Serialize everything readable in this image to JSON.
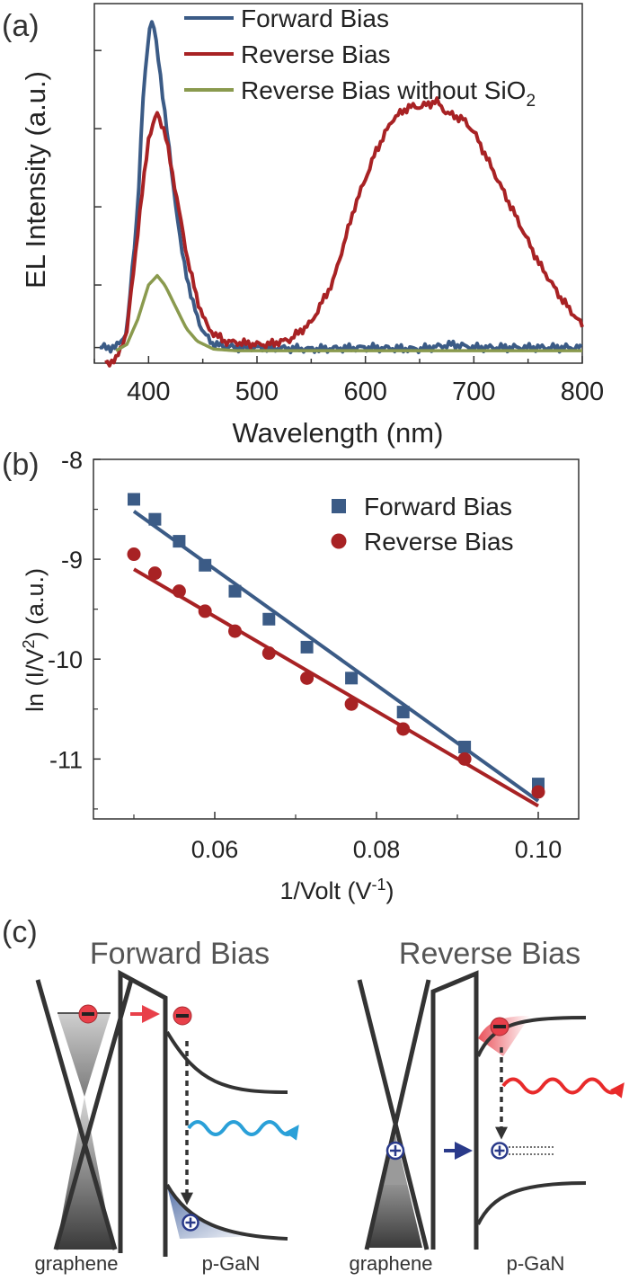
{
  "panels": {
    "a": "(a)",
    "b": "(b)",
    "c": "(c)"
  },
  "colors": {
    "forward": "#3b5b86",
    "reverse": "#a82224",
    "no_sio2": "#8a9a4e",
    "axis": "#333333",
    "electron": "#e8404a",
    "hole_arrow": "#2a3a8a",
    "blue_wave": "#2aa0d8",
    "red_wave": "#e82a2a"
  },
  "chart_data": [
    {
      "id": "a",
      "type": "line",
      "xlabel": "Wavelength (nm)",
      "ylabel": "EL Intensity (a.u.)",
      "xlim": [
        350,
        800
      ],
      "ylim": [
        0,
        1.15
      ],
      "x_ticks": [
        400,
        500,
        600,
        700,
        800
      ],
      "y_ticks": "unlabeled",
      "legend": {
        "placement": "top-right"
      },
      "series": [
        {
          "name": "Forward Bias",
          "color": "#3b5b86",
          "points": [
            [
              355,
              0.05
            ],
            [
              370,
              0.05
            ],
            [
              380,
              0.1
            ],
            [
              390,
              0.5
            ],
            [
              395,
              0.85
            ],
            [
              400,
              1.05
            ],
            [
              402,
              1.1
            ],
            [
              405,
              1.07
            ],
            [
              410,
              0.95
            ],
            [
              420,
              0.65
            ],
            [
              430,
              0.37
            ],
            [
              440,
              0.2
            ],
            [
              450,
              0.1
            ],
            [
              460,
              0.06
            ],
            [
              480,
              0.05
            ],
            [
              500,
              0.05
            ],
            [
              550,
              0.045
            ],
            [
              600,
              0.05
            ],
            [
              650,
              0.045
            ],
            [
              680,
              0.06
            ],
            [
              700,
              0.05
            ],
            [
              750,
              0.05
            ],
            [
              800,
              0.05
            ]
          ]
        },
        {
          "name": "Reverse Bias",
          "color": "#a82224",
          "points": [
            [
              360,
              0.0
            ],
            [
              370,
              0.01
            ],
            [
              380,
              0.1
            ],
            [
              390,
              0.42
            ],
            [
              400,
              0.72
            ],
            [
              408,
              0.8
            ],
            [
              415,
              0.74
            ],
            [
              425,
              0.55
            ],
            [
              435,
              0.35
            ],
            [
              445,
              0.2
            ],
            [
              455,
              0.11
            ],
            [
              470,
              0.07
            ],
            [
              500,
              0.06
            ],
            [
              510,
              0.06
            ],
            [
              530,
              0.075
            ],
            [
              550,
              0.13
            ],
            [
              570,
              0.26
            ],
            [
              590,
              0.5
            ],
            [
              610,
              0.68
            ],
            [
              625,
              0.78
            ],
            [
              640,
              0.82
            ],
            [
              650,
              0.82
            ],
            [
              660,
              0.83
            ],
            [
              665,
              0.84
            ],
            [
              675,
              0.8
            ],
            [
              690,
              0.78
            ],
            [
              700,
              0.74
            ],
            [
              720,
              0.6
            ],
            [
              740,
              0.46
            ],
            [
              760,
              0.32
            ],
            [
              780,
              0.21
            ],
            [
              800,
              0.12
            ]
          ]
        },
        {
          "name": "Reverse Bias without SiO2",
          "color": "#8a9a4e",
          "points": [
            [
              370,
              0.04
            ],
            [
              380,
              0.06
            ],
            [
              390,
              0.14
            ],
            [
              400,
              0.25
            ],
            [
              408,
              0.28
            ],
            [
              415,
              0.25
            ],
            [
              425,
              0.18
            ],
            [
              435,
              0.11
            ],
            [
              445,
              0.07
            ],
            [
              460,
              0.045
            ],
            [
              480,
              0.04
            ],
            [
              500,
              0.04
            ],
            [
              600,
              0.04
            ],
            [
              700,
              0.04
            ],
            [
              800,
              0.04
            ]
          ]
        }
      ],
      "legend_entries": [
        {
          "label": "Forward Bias"
        },
        {
          "label": "Reverse Bias"
        },
        {
          "label": "Reverse Bias without SiO",
          "subscript": "2"
        }
      ]
    },
    {
      "id": "b",
      "type": "scatter",
      "xlabel_main": "1/Volt (V",
      "xlabel_sup": "-1",
      "xlabel_end": ")",
      "ylabel_main": "ln (I/V",
      "ylabel_sup": "2",
      "ylabel_end": ") (a.u.)",
      "xlim": [
        0.045,
        0.105
      ],
      "ylim": [
        -11.6,
        -8.0
      ],
      "x_ticks": [
        0.06,
        0.08,
        0.1
      ],
      "x_tick_labels": [
        "0.06",
        "0.08",
        "0.10"
      ],
      "y_ticks": [
        -8,
        -9,
        -10,
        -11
      ],
      "y_tick_labels": [
        "-8",
        "-9",
        "-10",
        "-11"
      ],
      "legend": {
        "placement": "top-right"
      },
      "series": [
        {
          "name": "Forward Bias",
          "marker": "square",
          "color": "#3b5b86",
          "x": [
            0.05,
            0.0526,
            0.0556,
            0.0588,
            0.0625,
            0.0667,
            0.0714,
            0.0769,
            0.0833,
            0.0909,
            0.1
          ],
          "y": [
            -8.4,
            -8.6,
            -8.82,
            -9.06,
            -9.32,
            -9.6,
            -9.88,
            -10.19,
            -10.53,
            -10.88,
            -11.25
          ],
          "fit": [
            [
              0.05,
              -8.52
            ],
            [
              0.1,
              -11.42
            ]
          ]
        },
        {
          "name": "Reverse Bias",
          "marker": "circle",
          "color": "#a82224",
          "x": [
            0.05,
            0.0526,
            0.0556,
            0.0588,
            0.0625,
            0.0667,
            0.0714,
            0.0769,
            0.0833,
            0.0909,
            0.1
          ],
          "y": [
            -8.95,
            -9.14,
            -9.32,
            -9.52,
            -9.72,
            -9.94,
            -10.19,
            -10.45,
            -10.7,
            -11.0,
            -11.33
          ],
          "fit": [
            [
              0.05,
              -9.1
            ],
            [
              0.1,
              -11.47
            ]
          ]
        }
      ]
    }
  ],
  "diagram_c": {
    "forward": {
      "title": "Forward Bias",
      "left_label": "graphene",
      "right_label": "p-GaN"
    },
    "reverse": {
      "title": "Reverse Bias",
      "left_label": "graphene",
      "right_label": "p-GaN"
    }
  }
}
